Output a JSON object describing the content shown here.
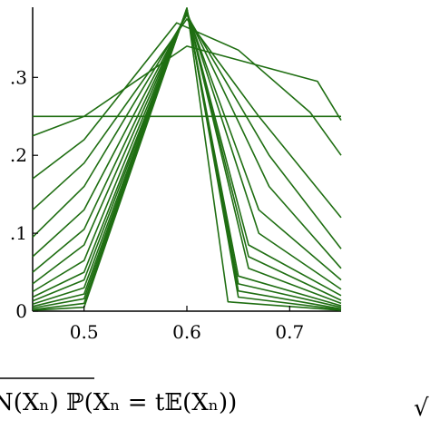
{
  "chart_data": {
    "type": "line",
    "title": "",
    "xlabel": "",
    "ylabel": "",
    "xlim": [
      0.45,
      0.75
    ],
    "ylim": [
      0,
      0.39
    ],
    "x_ticks": [
      {
        "value": 0.5,
        "label": "0.5"
      },
      {
        "value": 0.6,
        "label": "0.6"
      },
      {
        "value": 0.7,
        "label": "0.7"
      }
    ],
    "y_ticks": [
      {
        "value": 0.1,
        "label": ".1"
      },
      {
        "value": 0.2,
        "label": ".2"
      },
      {
        "value": 0.3,
        "label": ".3"
      },
      {
        "value": 0.0,
        "label": "0"
      }
    ],
    "grid": false,
    "legend": "none",
    "line_color": "#1f6e12",
    "series": [
      {
        "values": [
          [
            0.45,
            0.25
          ],
          [
            0.5,
            0.25
          ],
          [
            0.75,
            0.25
          ]
        ]
      },
      {
        "values": [
          [
            0.45,
            0.225
          ],
          [
            0.5,
            0.25
          ],
          [
            0.6,
            0.34
          ],
          [
            0.727,
            0.295
          ],
          [
            0.75,
            0.245
          ]
        ]
      },
      {
        "values": [
          [
            0.45,
            0.17
          ],
          [
            0.5,
            0.22
          ],
          [
            0.59,
            0.37
          ],
          [
            0.65,
            0.335
          ],
          [
            0.72,
            0.255
          ],
          [
            0.75,
            0.2
          ]
        ]
      },
      {
        "values": [
          [
            0.45,
            0.13
          ],
          [
            0.5,
            0.19
          ],
          [
            0.6,
            0.375
          ],
          [
            0.67,
            0.25
          ],
          [
            0.75,
            0.12
          ]
        ]
      },
      {
        "values": [
          [
            0.45,
            0.095
          ],
          [
            0.5,
            0.16
          ],
          [
            0.6,
            0.38
          ],
          [
            0.68,
            0.2
          ],
          [
            0.75,
            0.08
          ]
        ]
      },
      {
        "values": [
          [
            0.45,
            0.07
          ],
          [
            0.5,
            0.13
          ],
          [
            0.6,
            0.382
          ],
          [
            0.68,
            0.16
          ],
          [
            0.75,
            0.055
          ]
        ]
      },
      {
        "values": [
          [
            0.45,
            0.05
          ],
          [
            0.5,
            0.105
          ],
          [
            0.6,
            0.384
          ],
          [
            0.67,
            0.13
          ],
          [
            0.75,
            0.04
          ]
        ]
      },
      {
        "values": [
          [
            0.45,
            0.035
          ],
          [
            0.5,
            0.085
          ],
          [
            0.6,
            0.385
          ],
          [
            0.67,
            0.1
          ],
          [
            0.75,
            0.028
          ]
        ]
      },
      {
        "values": [
          [
            0.45,
            0.025
          ],
          [
            0.5,
            0.065
          ],
          [
            0.6,
            0.386
          ],
          [
            0.66,
            0.085
          ],
          [
            0.75,
            0.02
          ]
        ]
      },
      {
        "values": [
          [
            0.45,
            0.018
          ],
          [
            0.5,
            0.05
          ],
          [
            0.6,
            0.386
          ],
          [
            0.66,
            0.07
          ],
          [
            0.75,
            0.014
          ]
        ]
      },
      {
        "values": [
          [
            0.45,
            0.013
          ],
          [
            0.5,
            0.04
          ],
          [
            0.6,
            0.387
          ],
          [
            0.66,
            0.055
          ],
          [
            0.75,
            0.01
          ]
        ]
      },
      {
        "values": [
          [
            0.45,
            0.009
          ],
          [
            0.5,
            0.03
          ],
          [
            0.6,
            0.387
          ],
          [
            0.65,
            0.045
          ],
          [
            0.75,
            0.007
          ]
        ]
      },
      {
        "values": [
          [
            0.45,
            0.006
          ],
          [
            0.5,
            0.022
          ],
          [
            0.6,
            0.388
          ],
          [
            0.65,
            0.035
          ],
          [
            0.75,
            0.005
          ]
        ]
      },
      {
        "values": [
          [
            0.45,
            0.004
          ],
          [
            0.5,
            0.016
          ],
          [
            0.6,
            0.388
          ],
          [
            0.65,
            0.026
          ],
          [
            0.75,
            0.003
          ]
        ]
      },
      {
        "values": [
          [
            0.45,
            0.002
          ],
          [
            0.5,
            0.01
          ],
          [
            0.6,
            0.389
          ],
          [
            0.65,
            0.018
          ],
          [
            0.75,
            0.002
          ]
        ]
      },
      {
        "values": [
          [
            0.45,
            0.001
          ],
          [
            0.5,
            0.005
          ],
          [
            0.6,
            0.389
          ],
          [
            0.64,
            0.012
          ],
          [
            0.75,
            0.001
          ]
        ]
      }
    ]
  },
  "caption": {
    "text": "N(Xₙ) ℙ(Xₙ = t𝔼(Xₙ))"
  }
}
